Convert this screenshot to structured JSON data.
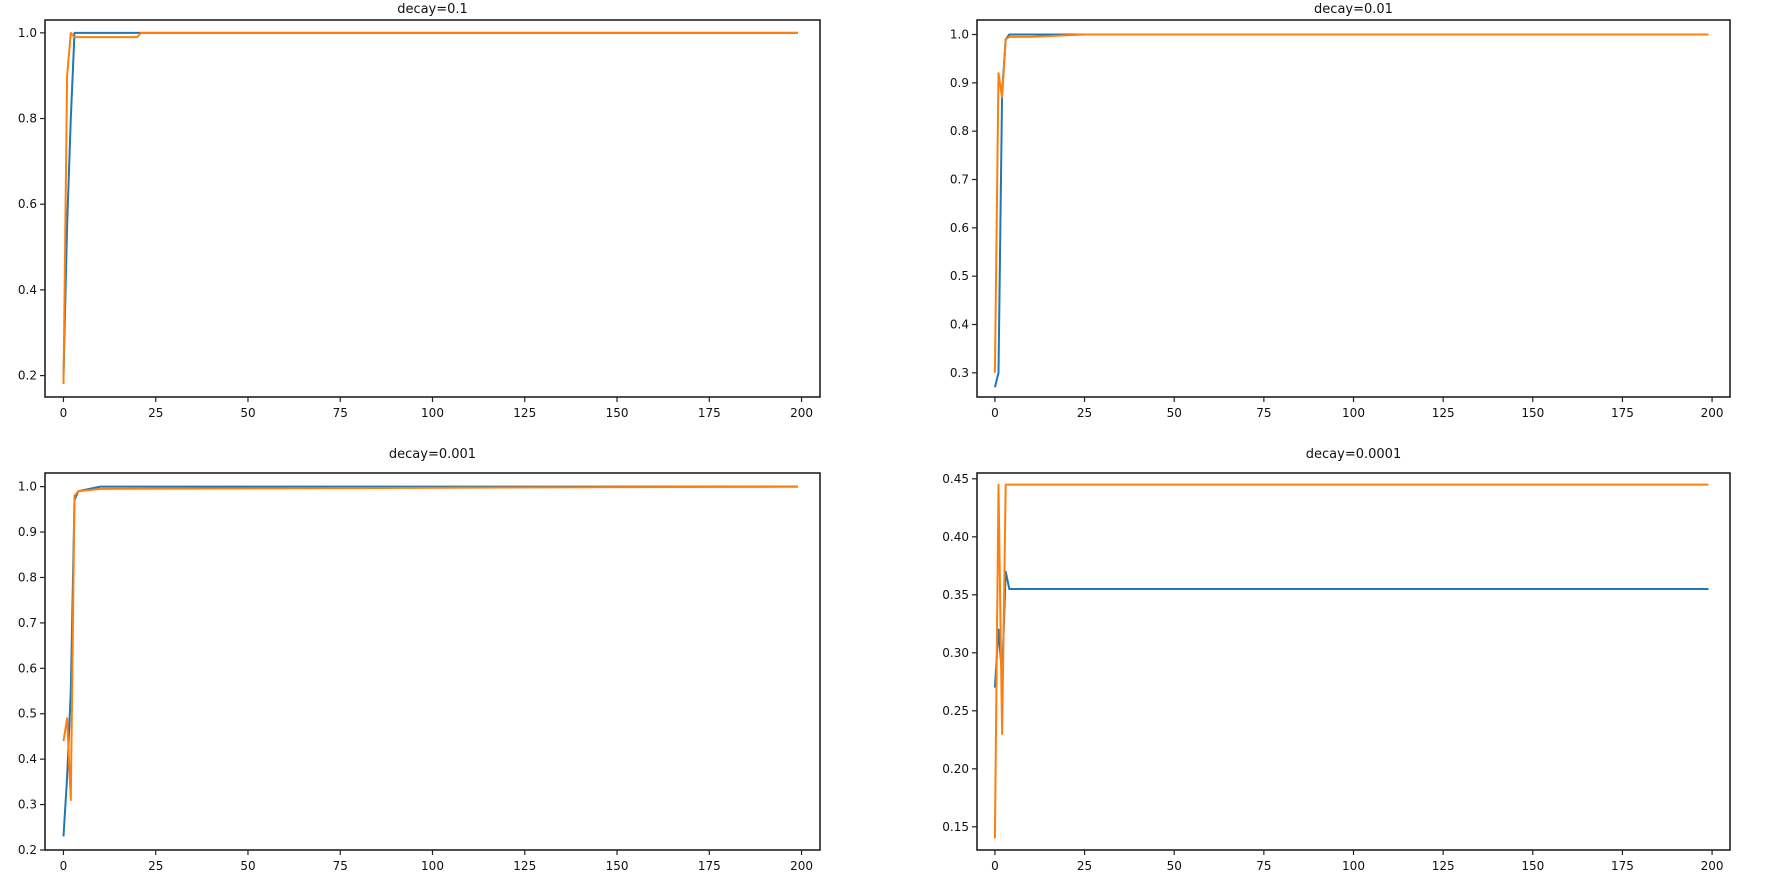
{
  "figure": {
    "layout": "2x2 subplots",
    "series_colors": {
      "series_1": "#1f77b4",
      "series_2": "#ff7f0e"
    }
  },
  "chart_data": [
    {
      "type": "line",
      "title": "decay=0.1",
      "xlabel": "",
      "ylabel": "",
      "xlim": [
        -5,
        205
      ],
      "ylim": [
        0.15,
        1.03
      ],
      "xticks": [
        0,
        25,
        50,
        75,
        100,
        125,
        150,
        175,
        200
      ],
      "yticks": [
        0.2,
        0.4,
        0.6,
        0.8,
        1.0
      ],
      "ytick_labels": [
        "0.2",
        "0.4",
        "0.6",
        "0.8",
        "1.0"
      ],
      "grid": false,
      "legend": null,
      "series": [
        {
          "name": "series_1",
          "color": "#1f77b4",
          "x": [
            0,
            1,
            2,
            3,
            10,
            20,
            21,
            199
          ],
          "y": [
            0.2,
            0.55,
            0.8,
            1.0,
            1.0,
            1.0,
            1.0,
            1.0
          ]
        },
        {
          "name": "series_2",
          "color": "#ff7f0e",
          "x": [
            0,
            1,
            2,
            3,
            4,
            20,
            21,
            199
          ],
          "y": [
            0.18,
            0.9,
            1.0,
            0.99,
            0.99,
            0.99,
            1.0,
            1.0
          ]
        }
      ]
    },
    {
      "type": "line",
      "title": "decay=0.01",
      "xlabel": "",
      "ylabel": "",
      "xlim": [
        -5,
        205
      ],
      "ylim": [
        0.25,
        1.03
      ],
      "xticks": [
        0,
        25,
        50,
        75,
        100,
        125,
        150,
        175,
        200
      ],
      "yticks": [
        0.3,
        0.4,
        0.5,
        0.6,
        0.7,
        0.8,
        0.9,
        1.0
      ],
      "ytick_labels": [
        "0.3",
        "0.4",
        "0.5",
        "0.6",
        "0.7",
        "0.8",
        "0.9",
        "1.0"
      ],
      "grid": false,
      "legend": null,
      "series": [
        {
          "name": "series_1",
          "color": "#1f77b4",
          "x": [
            0,
            1,
            2,
            3,
            4,
            10,
            20,
            199
          ],
          "y": [
            0.27,
            0.3,
            0.88,
            0.99,
            1.0,
            1.0,
            1.0,
            1.0
          ]
        },
        {
          "name": "series_2",
          "color": "#ff7f0e",
          "x": [
            0,
            1,
            2,
            3,
            4,
            10,
            25,
            199
          ],
          "y": [
            0.3,
            0.92,
            0.87,
            0.99,
            0.995,
            0.995,
            1.0,
            1.0
          ]
        }
      ]
    },
    {
      "type": "line",
      "title": "decay=0.001",
      "xlabel": "",
      "ylabel": "",
      "xlim": [
        -5,
        205
      ],
      "ylim": [
        0.2,
        1.03
      ],
      "xticks": [
        0,
        25,
        50,
        75,
        100,
        125,
        150,
        175,
        200
      ],
      "yticks": [
        0.2,
        0.3,
        0.4,
        0.5,
        0.6,
        0.7,
        0.8,
        0.9,
        1.0
      ],
      "ytick_labels": [
        "0.2",
        "0.3",
        "0.4",
        "0.5",
        "0.6",
        "0.7",
        "0.8",
        "0.9",
        "1.0"
      ],
      "grid": false,
      "legend": null,
      "series": [
        {
          "name": "series_1",
          "color": "#1f77b4",
          "x": [
            0,
            1,
            2,
            3,
            4,
            10,
            199
          ],
          "y": [
            0.23,
            0.36,
            0.55,
            0.97,
            0.99,
            1.0,
            1.0
          ]
        },
        {
          "name": "series_2",
          "color": "#ff7f0e",
          "x": [
            0,
            1,
            2,
            3,
            4,
            10,
            199
          ],
          "y": [
            0.44,
            0.49,
            0.31,
            0.98,
            0.99,
            0.995,
            1.0
          ]
        }
      ]
    },
    {
      "type": "line",
      "title": "decay=0.0001",
      "xlabel": "",
      "ylabel": "",
      "xlim": [
        -5,
        205
      ],
      "ylim": [
        0.13,
        0.455
      ],
      "xticks": [
        0,
        25,
        50,
        75,
        100,
        125,
        150,
        175,
        200
      ],
      "yticks": [
        0.15,
        0.2,
        0.25,
        0.3,
        0.35,
        0.4,
        0.45
      ],
      "ytick_labels": [
        "0.15",
        "0.20",
        "0.25",
        "0.30",
        "0.35",
        "0.40",
        "0.45"
      ],
      "grid": false,
      "legend": null,
      "series": [
        {
          "name": "series_1",
          "color": "#1f77b4",
          "x": [
            0,
            1,
            2,
            3,
            4,
            199
          ],
          "y": [
            0.27,
            0.32,
            0.28,
            0.37,
            0.355,
            0.355
          ]
        },
        {
          "name": "series_2",
          "color": "#ff7f0e",
          "x": [
            0,
            1,
            2,
            3,
            4,
            199
          ],
          "y": [
            0.14,
            0.445,
            0.23,
            0.445,
            0.445,
            0.445
          ]
        }
      ]
    }
  ]
}
